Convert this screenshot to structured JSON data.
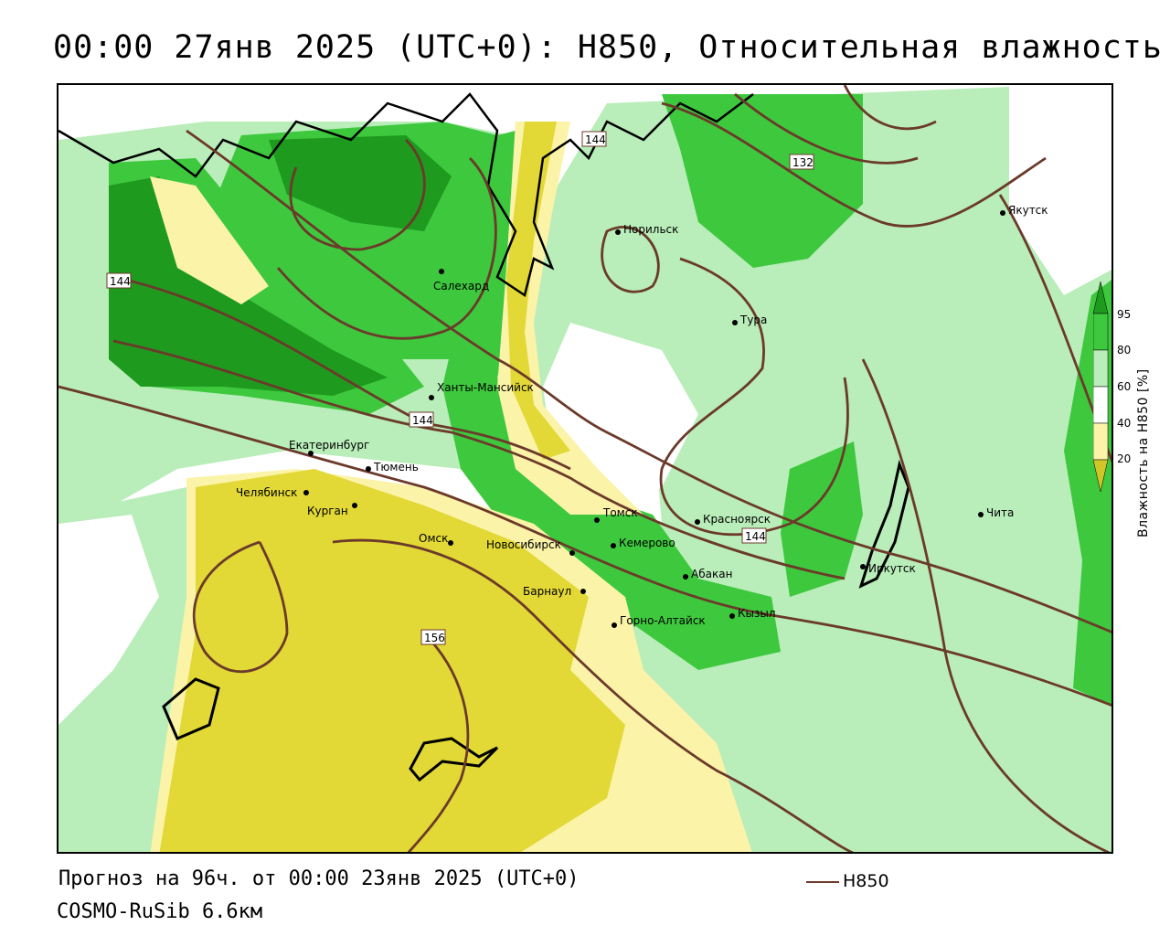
{
  "title": "00:00 27янв 2025 (UTC+0): H850, Относительная влажность",
  "forecast_text": "Прогноз на 96ч. от 00:00 23янв 2025 (UTC+0)",
  "model_text": "COSMO-RuSib 6.6км",
  "line_legend": {
    "label": "H850",
    "color": "#6b3a2a"
  },
  "colorbar": {
    "title": "Влажность на H850 [%]",
    "ticks": [
      "95",
      "80",
      "60",
      "40",
      "20"
    ],
    "colors": {
      "dark_green": "#1e9a1e",
      "green": "#3ec83e",
      "light_green": "#b9edb9",
      "white": "#ffffff",
      "light_yellow": "#fbf3a8",
      "yellow": "#e2d836",
      "olive": "#d1c628"
    }
  },
  "contour_labels": [
    "144",
    "144",
    "132",
    "144",
    "144",
    "156"
  ],
  "cities": [
    {
      "name": "Норильск"
    },
    {
      "name": "Якутск"
    },
    {
      "name": "Салехард"
    },
    {
      "name": "Тура"
    },
    {
      "name": "Ханты-Мансийск"
    },
    {
      "name": "Екатеринбург"
    },
    {
      "name": "Тюмень"
    },
    {
      "name": "Челябинск"
    },
    {
      "name": "Курган"
    },
    {
      "name": "Омск"
    },
    {
      "name": "Новосибирск"
    },
    {
      "name": "Томск"
    },
    {
      "name": "Красноярск"
    },
    {
      "name": "Кемерово"
    },
    {
      "name": "Абакан"
    },
    {
      "name": "Барнаул"
    },
    {
      "name": "Горно-Алтайск"
    },
    {
      "name": "Кызыл"
    },
    {
      "name": "Иркутск"
    },
    {
      "name": "Чита"
    }
  ]
}
